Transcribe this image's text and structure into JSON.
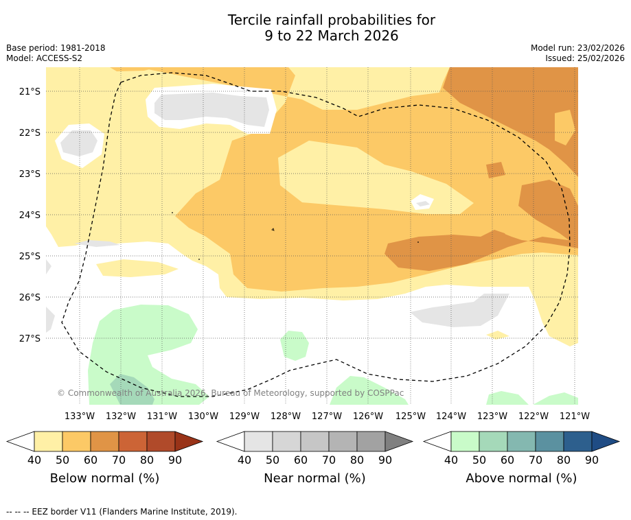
{
  "title_line1": "Tercile rainfall probabilities for",
  "title_line2": "9 to 22 March 2026",
  "base_period": "Base period: 1981-2018",
  "model": "Model: ACCESS-S2",
  "model_run": "Model run: 23/02/2026",
  "issued": "Issued: 25/02/2026",
  "copyright": "© Commonwealth of Australia 2026, Bureau of Meteorology, supported by COSPPac",
  "lat_labels": [
    "21°S",
    "22°S",
    "23°S",
    "24°S",
    "25°S",
    "26°S",
    "27°S"
  ],
  "lon_labels": [
    "133°W",
    "132°W",
    "131°W",
    "130°W",
    "129°W",
    "128°W",
    "127°W",
    "126°W",
    "125°W",
    "124°W",
    "123°W",
    "122°W",
    "121°W"
  ],
  "colorbars": [
    {
      "label": "Below normal (%)",
      "ticks": [
        "40",
        "50",
        "60",
        "70",
        "80",
        "90"
      ],
      "colors": [
        "#fff0a6",
        "#fcc966",
        "#e09446",
        "#cc6436",
        "#b04a2a"
      ],
      "min_color": "#ffffff",
      "max_color": "#993318"
    },
    {
      "label": "Near normal (%)",
      "ticks": [
        "40",
        "50",
        "60",
        "70",
        "80",
        "90"
      ],
      "colors": [
        "#e5e5e5",
        "#d6d6d6",
        "#c6c6c6",
        "#b4b4b4",
        "#a2a2a2"
      ],
      "min_color": "#ffffff",
      "max_color": "#808080"
    },
    {
      "label": "Above normal (%)",
      "ticks": [
        "40",
        "50",
        "60",
        "70",
        "80",
        "90"
      ],
      "colors": [
        "#c9fbc9",
        "#a5d9b9",
        "#84b8b0",
        "#5b91a0",
        "#2d5f8d"
      ],
      "min_color": "#ffffff",
      "max_color": "#1f4c84"
    }
  ],
  "legend_note": "--  --  -- EEZ border V11 (Flanders Marine Institute, 2019).",
  "colors": {
    "below_40": "#fff0a6",
    "below_50": "#fcc966",
    "below_60": "#e09446",
    "near_40": "#e5e5e5",
    "above_40": "#c9fbc9",
    "above_50": "#a5d9b9"
  }
}
